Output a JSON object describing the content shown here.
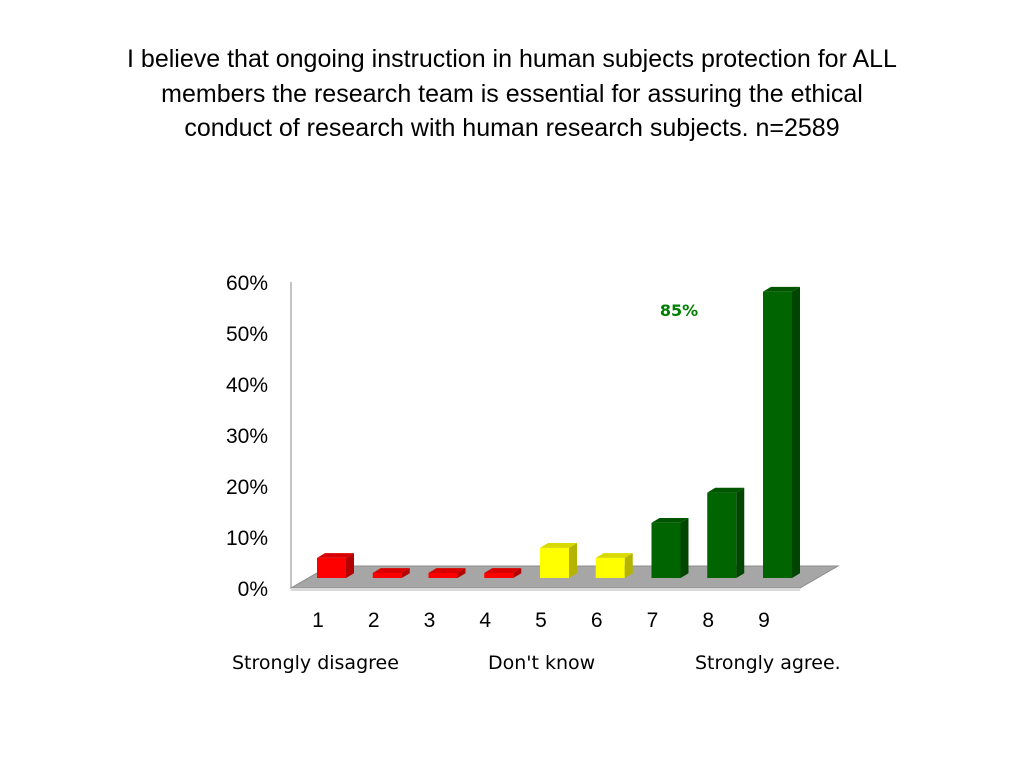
{
  "title_lines": [
    "I believe that ongoing instruction in human subjects protection for ALL",
    "members the research team is essential for assuring the ethical",
    "conduct of research with human research subjects. n=2589"
  ],
  "chart_data": {
    "type": "bar",
    "categories": [
      "1",
      "2",
      "3",
      "4",
      "5",
      "6",
      "7",
      "8",
      "9"
    ],
    "values": [
      4,
      1,
      1,
      1,
      6,
      4,
      11,
      17,
      57
    ],
    "value_unit": "%",
    "ylim": [
      0,
      60
    ],
    "yticks": [
      "0%",
      "10%",
      "20%",
      "30%",
      "40%",
      "50%",
      "60%"
    ],
    "bar_colors": [
      "#ff0000",
      "#ff0000",
      "#ff0000",
      "#ff0000",
      "#ffff00",
      "#ffff00",
      "#006400",
      "#006400",
      "#006400"
    ],
    "annotation": {
      "text": "85%",
      "color": "#008000"
    },
    "style": "3d-bar",
    "grid": false,
    "legend": "none"
  },
  "scale_anchors": {
    "left": "Strongly disagree",
    "middle": "Don't know",
    "right": "Strongly agree."
  }
}
